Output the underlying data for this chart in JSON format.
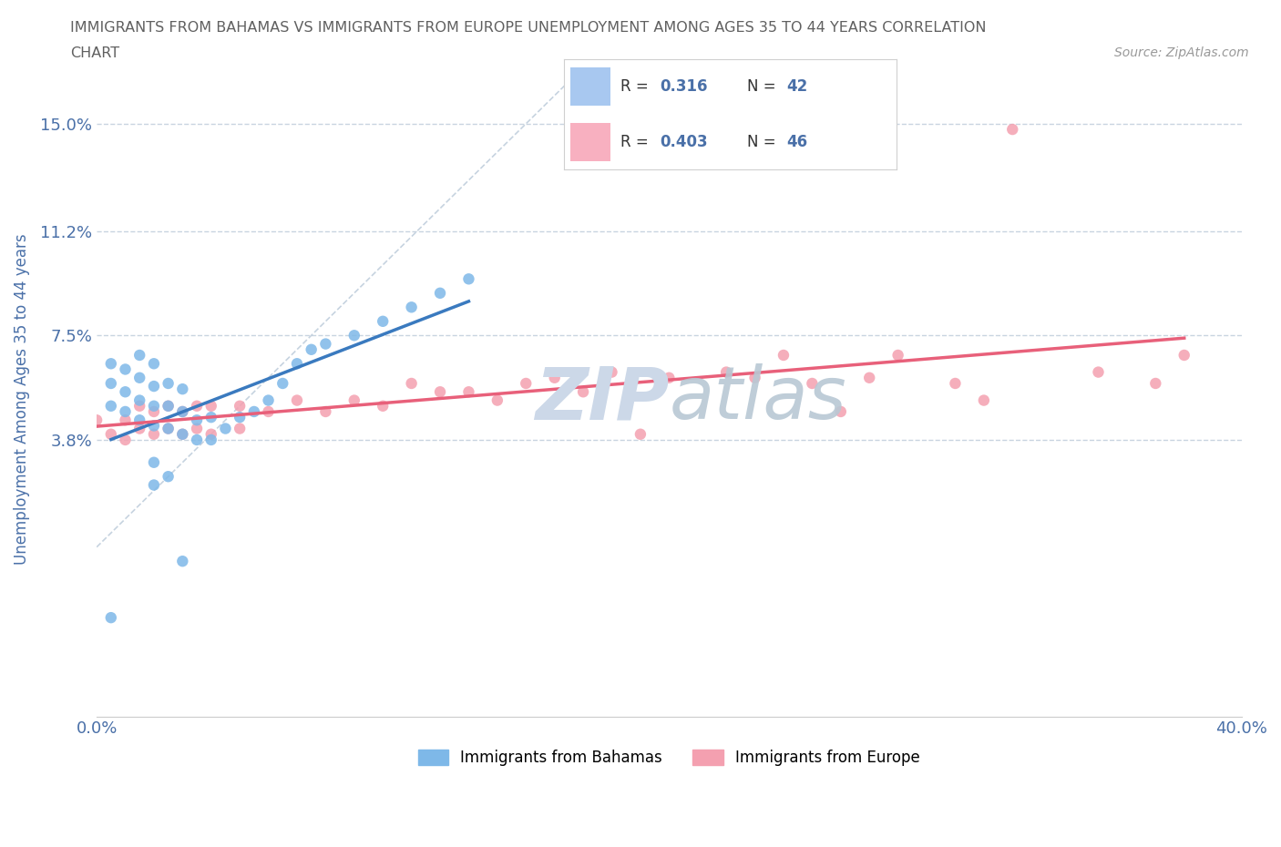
{
  "title_line1": "IMMIGRANTS FROM BAHAMAS VS IMMIGRANTS FROM EUROPE UNEMPLOYMENT AMONG AGES 35 TO 44 YEARS CORRELATION",
  "title_line2": "CHART",
  "source": "Source: ZipAtlas.com",
  "ylabel": "Unemployment Among Ages 35 to 44 years",
  "xlim": [
    0.0,
    0.4
  ],
  "ylim": [
    -0.06,
    0.165
  ],
  "yticks": [
    0.038,
    0.075,
    0.112,
    0.15
  ],
  "ytick_labels": [
    "3.8%",
    "7.5%",
    "11.2%",
    "15.0%"
  ],
  "xticks": [
    0.0,
    0.05,
    0.1,
    0.15,
    0.2,
    0.25,
    0.3,
    0.35,
    0.4
  ],
  "xtick_labels": [
    "0.0%",
    "",
    "",
    "",
    "",
    "",
    "",
    "",
    "40.0%"
  ],
  "bahamas_R": 0.316,
  "bahamas_N": 42,
  "europe_R": 0.403,
  "europe_N": 46,
  "bahamas_color": "#7eb8e8",
  "europe_color": "#f4a0b0",
  "bahamas_line_color": "#3a7abf",
  "europe_line_color": "#e8607a",
  "diag_color": "#b8c8d8",
  "grid_color": "#c8d4e0",
  "title_color": "#606060",
  "axis_label_color": "#4a70a8",
  "watermark_color": "#ccd8e8",
  "legend_box_color_blue": "#a8c8f0",
  "legend_box_color_pink": "#f8b0c0",
  "background_color": "#ffffff",
  "bahamas_x": [
    0.005,
    0.005,
    0.005,
    0.01,
    0.01,
    0.01,
    0.015,
    0.015,
    0.015,
    0.015,
    0.02,
    0.02,
    0.02,
    0.02,
    0.025,
    0.025,
    0.025,
    0.03,
    0.03,
    0.03,
    0.035,
    0.035,
    0.04,
    0.04,
    0.045,
    0.05,
    0.055,
    0.06,
    0.065,
    0.07,
    0.075,
    0.08,
    0.09,
    0.1,
    0.11,
    0.12,
    0.13,
    0.02,
    0.02,
    0.025,
    0.03,
    0.005
  ],
  "bahamas_y": [
    0.05,
    0.058,
    0.065,
    0.048,
    0.055,
    0.063,
    0.045,
    0.052,
    0.06,
    0.068,
    0.043,
    0.05,
    0.057,
    0.065,
    0.042,
    0.05,
    0.058,
    0.04,
    0.048,
    0.056,
    0.038,
    0.045,
    0.038,
    0.046,
    0.042,
    0.046,
    0.048,
    0.052,
    0.058,
    0.065,
    0.07,
    0.072,
    0.075,
    0.08,
    0.085,
    0.09,
    0.095,
    0.03,
    0.022,
    0.025,
    -0.005,
    -0.025
  ],
  "europe_x": [
    0.0,
    0.005,
    0.01,
    0.01,
    0.015,
    0.015,
    0.02,
    0.02,
    0.025,
    0.025,
    0.03,
    0.03,
    0.035,
    0.035,
    0.04,
    0.04,
    0.05,
    0.05,
    0.06,
    0.07,
    0.08,
    0.09,
    0.1,
    0.11,
    0.12,
    0.13,
    0.15,
    0.16,
    0.17,
    0.18,
    0.2,
    0.22,
    0.24,
    0.25,
    0.27,
    0.28,
    0.3,
    0.32,
    0.35,
    0.37,
    0.38,
    0.14,
    0.19,
    0.23,
    0.26,
    0.31
  ],
  "europe_y": [
    0.045,
    0.04,
    0.038,
    0.045,
    0.042,
    0.05,
    0.04,
    0.048,
    0.042,
    0.05,
    0.04,
    0.048,
    0.042,
    0.05,
    0.04,
    0.05,
    0.042,
    0.05,
    0.048,
    0.052,
    0.048,
    0.052,
    0.05,
    0.058,
    0.055,
    0.055,
    0.058,
    0.06,
    0.055,
    0.062,
    0.06,
    0.062,
    0.068,
    0.058,
    0.06,
    0.068,
    0.058,
    0.148,
    0.062,
    0.058,
    0.068,
    0.052,
    0.04,
    0.06,
    0.048,
    0.052
  ],
  "figsize": [
    14.06,
    9.3
  ],
  "dpi": 100
}
